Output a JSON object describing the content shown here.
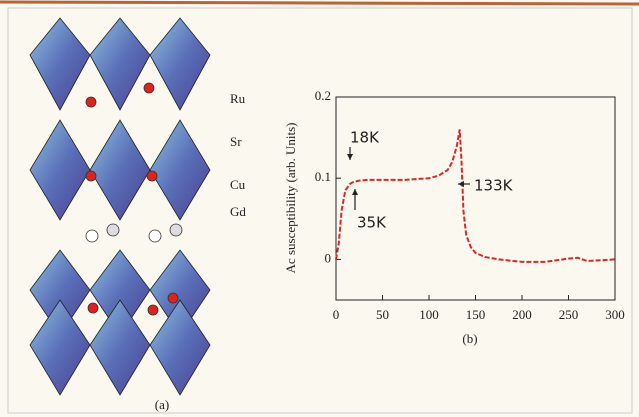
{
  "structure": {
    "labels": [
      "Ru",
      "Sr",
      "Cu",
      "Gd"
    ],
    "caption": "(a)"
  },
  "chart_data": {
    "type": "line",
    "caption": "(b)",
    "y_label": "Ac susceptibility (arb. Units)",
    "x": [
      0,
      3,
      6,
      10,
      15,
      18,
      25,
      35,
      50,
      75,
      100,
      110,
      120,
      125,
      130,
      133,
      135,
      137,
      140,
      145,
      150,
      160,
      175,
      200,
      225,
      250,
      260,
      270,
      285,
      300
    ],
    "series": [
      {
        "color": "#d42a2a",
        "values": [
          0,
          0.02,
          0.06,
          0.085,
          0.093,
          0.095,
          0.097,
          0.098,
          0.098,
          0.098,
          0.1,
          0.103,
          0.11,
          0.12,
          0.14,
          0.16,
          0.12,
          0.06,
          0.03,
          0.015,
          0.008,
          0.003,
          0,
          -0.003,
          -0.003,
          0.001,
          0.002,
          -0.002,
          -0.001,
          0
        ]
      }
    ],
    "xlim": [
      0,
      300
    ],
    "xticks": [
      0,
      50,
      100,
      150,
      200,
      250,
      300
    ],
    "ylim": [
      -0.05,
      0.2
    ],
    "yticks": [
      0,
      0.1,
      0.2
    ],
    "annotations": [
      "18K",
      "35K",
      "133K"
    ]
  }
}
